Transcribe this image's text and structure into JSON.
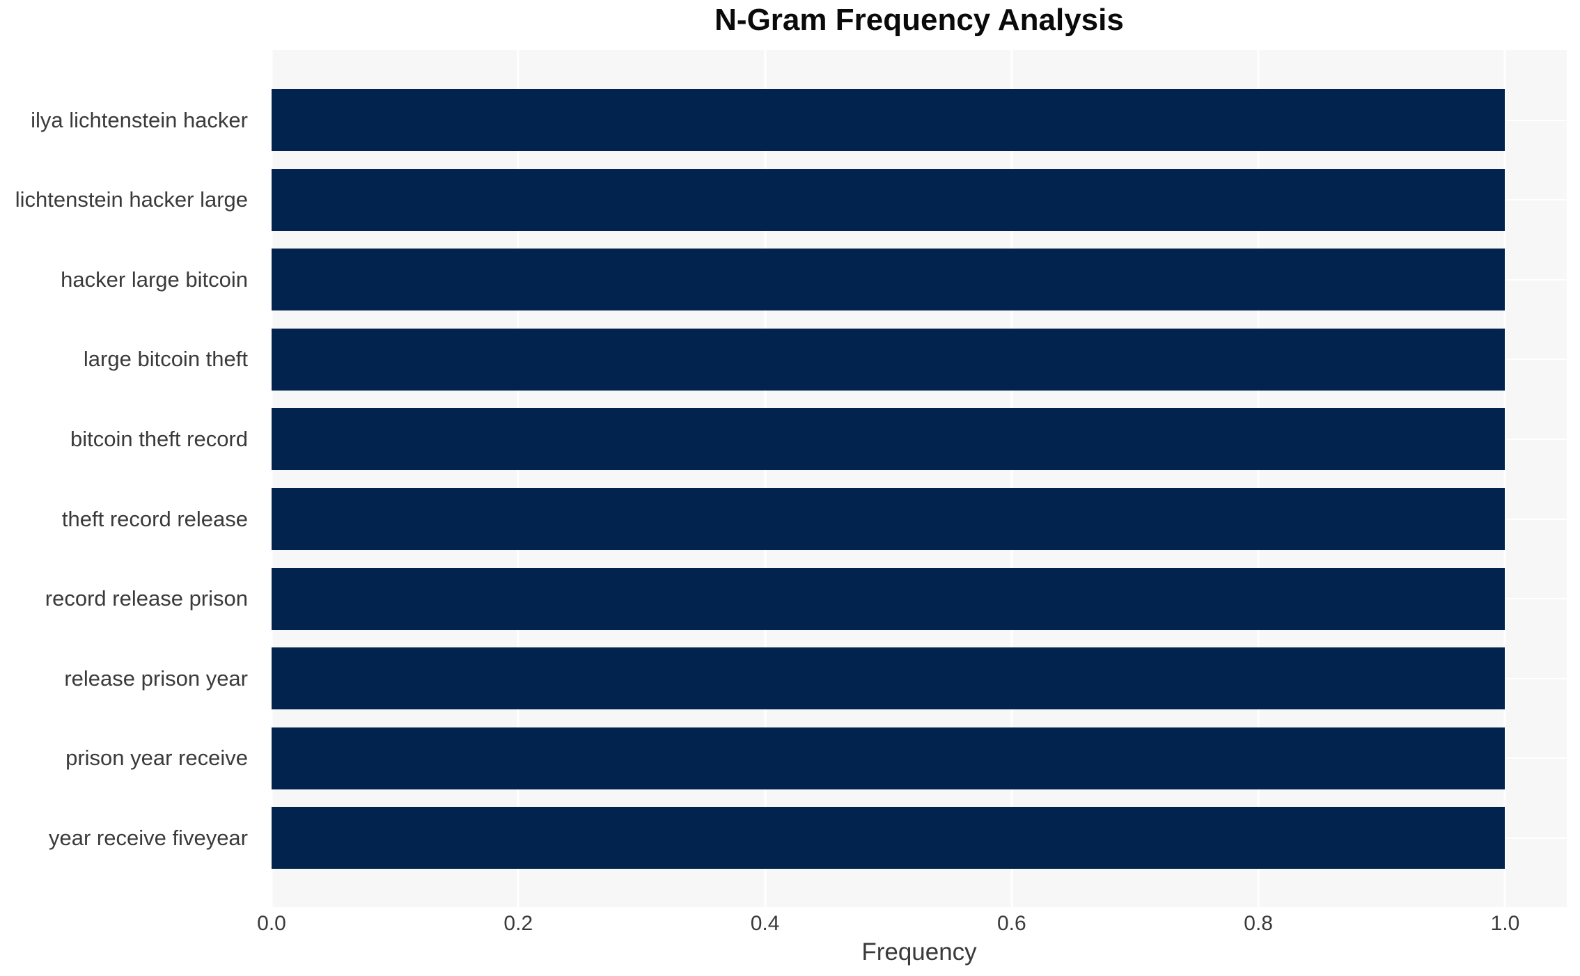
{
  "chart_data": {
    "type": "bar",
    "orientation": "horizontal",
    "title": "N-Gram Frequency Analysis",
    "xlabel": "Frequency",
    "ylabel": "",
    "categories": [
      "ilya lichtenstein hacker",
      "lichtenstein hacker large",
      "hacker large bitcoin",
      "large bitcoin theft",
      "bitcoin theft record",
      "theft record release",
      "record release prison",
      "release prison year",
      "prison year receive",
      "year receive fiveyear"
    ],
    "values": [
      1.0,
      1.0,
      1.0,
      1.0,
      1.0,
      1.0,
      1.0,
      1.0,
      1.0,
      1.0
    ],
    "x_ticks": [
      0.0,
      0.2,
      0.4,
      0.6,
      0.8,
      1.0
    ],
    "x_tick_labels": [
      "0.0",
      "0.2",
      "0.4",
      "0.6",
      "0.8",
      "1.0"
    ],
    "xlim": [
      0,
      1.05
    ],
    "grid": true,
    "legend": false,
    "colors": {
      "bar": "#02234d",
      "plot_background": "#f7f7f8",
      "gridline": "#ffffff",
      "label_text": "#3a3a3a",
      "title_text": "#0a0a0a"
    }
  }
}
